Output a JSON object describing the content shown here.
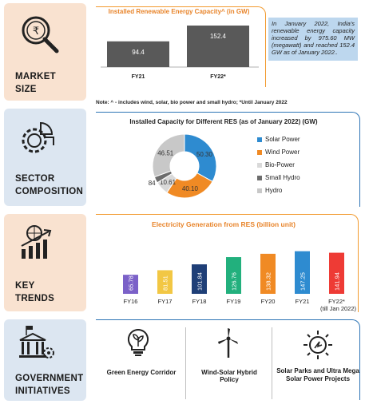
{
  "sections": [
    {
      "label_line1": "MARKET",
      "label_line2": "SIZE",
      "icon": "rupee-search-icon"
    },
    {
      "label_line1": "SECTOR",
      "label_line2": "COMPOSITION",
      "icon": "gear-pie-icon"
    },
    {
      "label_line1": "KEY",
      "label_line2": "TRENDS",
      "icon": "growth-chart-icon"
    },
    {
      "label_line1": "GOVERNMENT",
      "label_line2": "INITIATIVES",
      "icon": "government-building-icon"
    }
  ],
  "market": {
    "callout": "In January 2022, India's renewable energy capacity increased by 975.60 MW (megawatt) and reached 152.4 GW as of January 2022..",
    "note": "Note: ^ - includes wind, solar, bio power and small hydro; *Until January 2022"
  },
  "initiatives": [
    {
      "label": "Green Energy Corridor",
      "icon": "bulb-leaf-icon"
    },
    {
      "label": "Wind-Solar Hybrid Policy",
      "icon": "wind-turbine-icon"
    },
    {
      "label": "Solar Parks and Ultra Mega Solar Power Projects",
      "icon": "sun-bulb-icon"
    }
  ],
  "chart_data": [
    {
      "type": "bar",
      "title": "Installed Renewable Energy Capacity^ (in GW)",
      "categories": [
        "FY21",
        "FY22*"
      ],
      "values": [
        94.4,
        152.4
      ],
      "colors": [
        "#595959",
        "#595959"
      ]
    },
    {
      "type": "pie",
      "title": "Installed Capacity for Different RES (as of January 2022) (GW)",
      "labels": [
        "Solar Power",
        "Wind Power",
        "Bio-Power",
        "Small Hydro",
        "Hydro"
      ],
      "values": [
        50.3,
        40.1,
        10.61,
        4.84,
        46.51
      ],
      "display_values": [
        "50.30",
        "40.10",
        "10.61",
        "4.84",
        "46.51"
      ],
      "colors": [
        "#2e8bd0",
        "#f08a24",
        "#d9d9d9",
        "#6d6d6d",
        "#c8c8c8"
      ],
      "legend": "right"
    },
    {
      "type": "bar",
      "title": "Electricity Generation from RES (billion unit)",
      "categories": [
        "FY16",
        "FY17",
        "FY18",
        "FY19",
        "FY20",
        "FY21",
        "FY22* (till Jan 2022)"
      ],
      "values": [
        65.78,
        81.51,
        101.84,
        126.76,
        138.32,
        147.25,
        141.94
      ],
      "display_values": [
        "65.78",
        "81.51",
        "101.84",
        "126.76",
        "138.32",
        "147.25",
        "141.94"
      ],
      "colors": [
        "#7b61c8",
        "#f2c744",
        "#1f3f77",
        "#22b07d",
        "#f08a24",
        "#2e8bd0",
        "#ee3b35"
      ]
    }
  ]
}
